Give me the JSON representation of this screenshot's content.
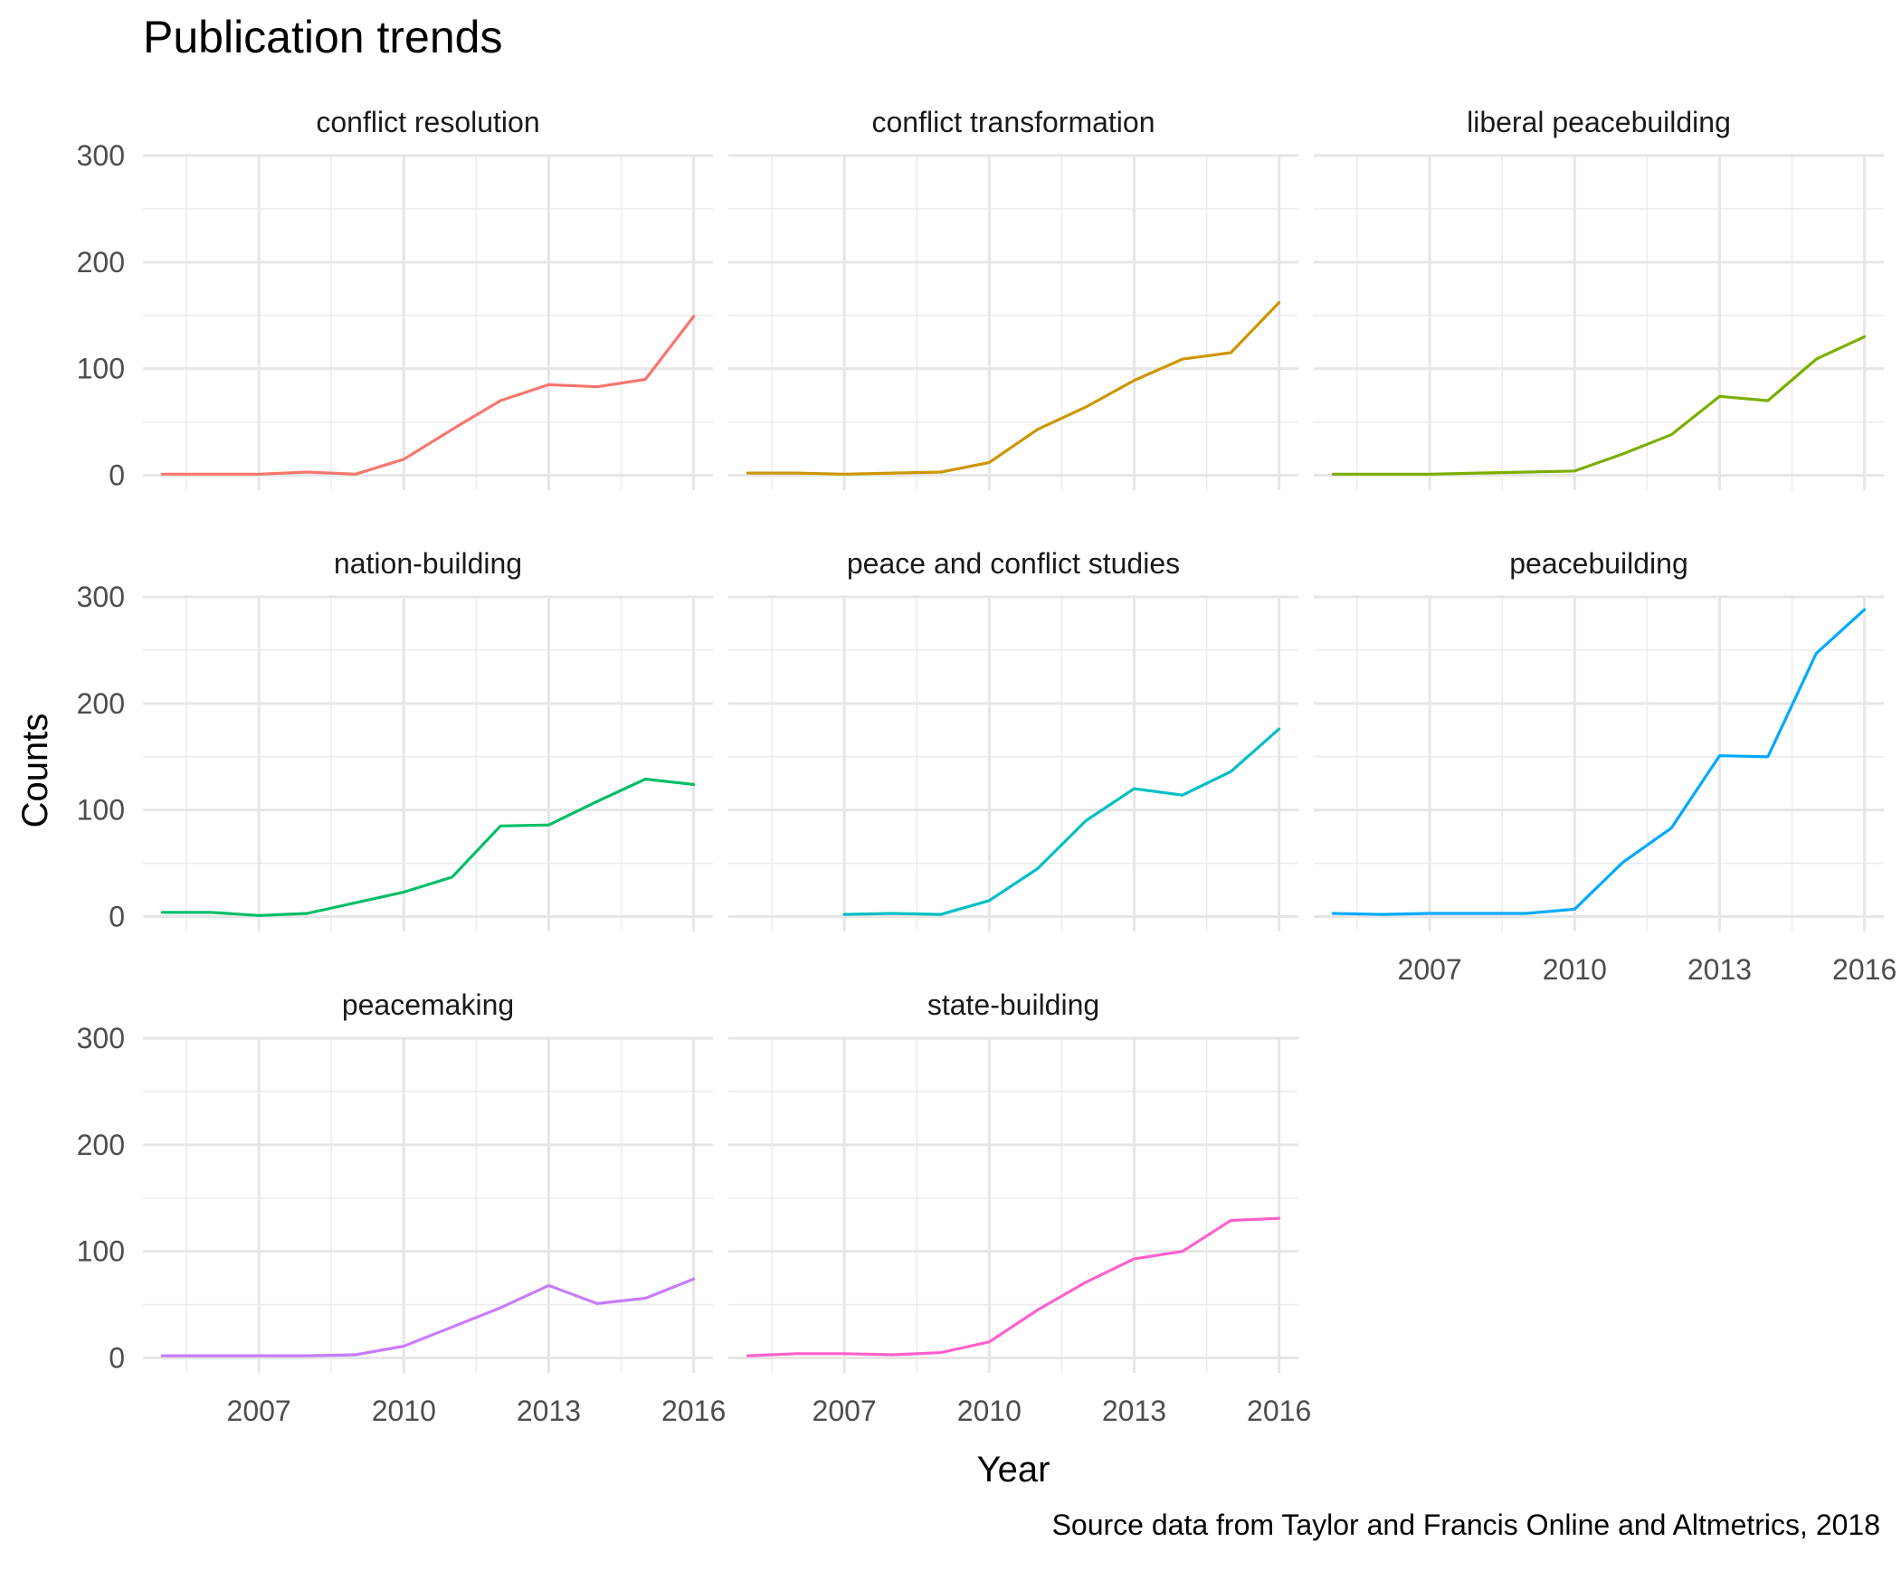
{
  "chart_data": {
    "type": "line",
    "title": "Publication trends",
    "xlabel": "Year",
    "ylabel": "Counts",
    "caption": "Source data from Taylor and Francis Online and Altmetrics, 2018",
    "xlim": [
      2004.6,
      2016.4
    ],
    "ylim": [
      -14,
      300
    ],
    "x_ticks": [
      2007,
      2010,
      2013,
      2016
    ],
    "y_ticks": [
      0,
      100,
      200,
      300
    ],
    "grid": true,
    "legend": "none",
    "panels": [
      {
        "name": "conflict resolution",
        "color": "#F8766D",
        "x": [
          2005,
          2006,
          2007,
          2008,
          2009,
          2010,
          2011,
          2012,
          2013,
          2014,
          2015,
          2016
        ],
        "y": [
          1,
          1,
          1,
          3,
          1,
          15,
          43,
          70,
          85,
          83,
          90,
          149
        ]
      },
      {
        "name": "conflict transformation",
        "color": "#CD9600",
        "x": [
          2005,
          2006,
          2007,
          2008,
          2009,
          2010,
          2011,
          2012,
          2013,
          2014,
          2015,
          2016
        ],
        "y": [
          2,
          2,
          1,
          2,
          3,
          12,
          43,
          64,
          89,
          109,
          115,
          162
        ]
      },
      {
        "name": "liberal peacebuilding",
        "color": "#7CAE00",
        "x": [
          2005,
          2006,
          2007,
          2008,
          2009,
          2010,
          2011,
          2012,
          2013,
          2014,
          2015,
          2016
        ],
        "y": [
          1,
          1,
          1,
          2,
          3,
          4,
          20,
          38,
          74,
          70,
          109,
          130
        ]
      },
      {
        "name": "nation-building",
        "color": "#00BE67",
        "x": [
          2005,
          2006,
          2007,
          2008,
          2009,
          2010,
          2011,
          2012,
          2013,
          2014,
          2015,
          2016
        ],
        "y": [
          4,
          4,
          1,
          3,
          13,
          23,
          37,
          85,
          86,
          108,
          129,
          124
        ]
      },
      {
        "name": "peace and conflict studies",
        "color": "#00BFC4",
        "x": [
          2007,
          2008,
          2009,
          2010,
          2011,
          2012,
          2013,
          2014,
          2015,
          2016
        ],
        "y": [
          2,
          3,
          2,
          15,
          45,
          90,
          120,
          114,
          136,
          176
        ]
      },
      {
        "name": "peacebuilding",
        "color": "#00A9FF",
        "x": [
          2005,
          2006,
          2007,
          2008,
          2009,
          2010,
          2011,
          2012,
          2013,
          2014,
          2015,
          2016
        ],
        "y": [
          3,
          2,
          3,
          3,
          3,
          7,
          51,
          83,
          151,
          150,
          247,
          288
        ]
      },
      {
        "name": "peacemaking",
        "color": "#C77CFF",
        "x": [
          2005,
          2006,
          2007,
          2008,
          2009,
          2010,
          2011,
          2012,
          2013,
          2014,
          2015,
          2016
        ],
        "y": [
          2,
          2,
          2,
          2,
          3,
          11,
          29,
          47,
          68,
          51,
          56,
          74
        ]
      },
      {
        "name": "state-building",
        "color": "#FF61CC",
        "x": [
          2005,
          2006,
          2007,
          2008,
          2009,
          2010,
          2011,
          2012,
          2013,
          2014,
          2015,
          2016
        ],
        "y": [
          2,
          4,
          4,
          3,
          5,
          15,
          45,
          71,
          93,
          100,
          129,
          131
        ]
      }
    ]
  }
}
